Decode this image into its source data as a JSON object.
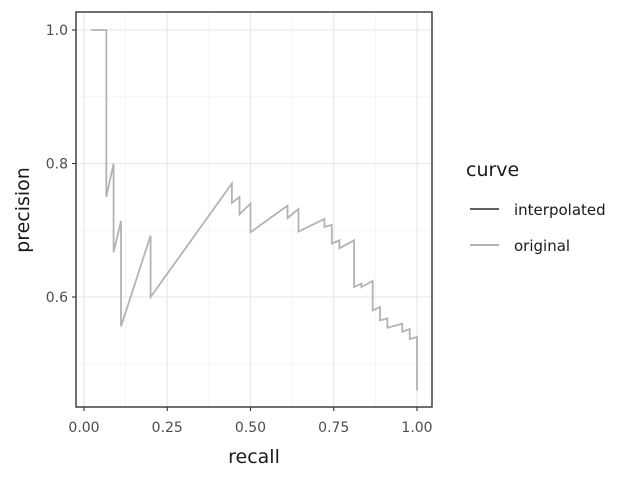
{
  "chart_data": {
    "type": "line",
    "xlabel": "recall",
    "ylabel": "precision",
    "xlim": [
      0.0,
      1.0
    ],
    "ylim": [
      0.45,
      1.0
    ],
    "x_ticks": [
      0.0,
      0.25,
      0.5,
      0.75,
      1.0
    ],
    "x_tick_labels": [
      "0.00",
      "0.25",
      "0.50",
      "0.75",
      "1.00"
    ],
    "y_ticks": [
      0.6,
      0.8,
      1.0
    ],
    "y_tick_labels": [
      "0.6",
      "0.8",
      "1.0"
    ],
    "grid": true,
    "legend": {
      "title": "curve",
      "position": "right",
      "entries": [
        {
          "label": "interpolated",
          "color": "#000000"
        },
        {
          "label": "original",
          "color": "#b3b3b3"
        }
      ]
    },
    "series": [
      {
        "name": "interpolated",
        "color": "#000000",
        "x": [],
        "y": []
      },
      {
        "name": "original",
        "color": "#b3b3b3",
        "x": [
          0.022,
          0.067,
          0.067,
          0.089,
          0.089,
          0.111,
          0.111,
          0.2,
          0.2,
          0.444,
          0.444,
          0.467,
          0.467,
          0.5,
          0.5,
          0.611,
          0.611,
          0.644,
          0.644,
          0.722,
          0.722,
          0.744,
          0.744,
          0.767,
          0.767,
          0.811,
          0.811,
          0.833,
          0.833,
          0.867,
          0.867,
          0.889,
          0.889,
          0.911,
          0.911,
          0.956,
          0.956,
          0.978,
          0.978,
          1.0,
          1.0
        ],
        "y": [
          1.0,
          1.0,
          0.75,
          0.8,
          0.667,
          0.714,
          0.556,
          0.692,
          0.6,
          0.77,
          0.741,
          0.75,
          0.724,
          0.74,
          0.697,
          0.737,
          0.718,
          0.732,
          0.698,
          0.717,
          0.705,
          0.708,
          0.68,
          0.685,
          0.673,
          0.685,
          0.615,
          0.62,
          0.615,
          0.624,
          0.58,
          0.585,
          0.565,
          0.568,
          0.554,
          0.56,
          0.548,
          0.552,
          0.537,
          0.54,
          0.46
        ]
      }
    ]
  }
}
